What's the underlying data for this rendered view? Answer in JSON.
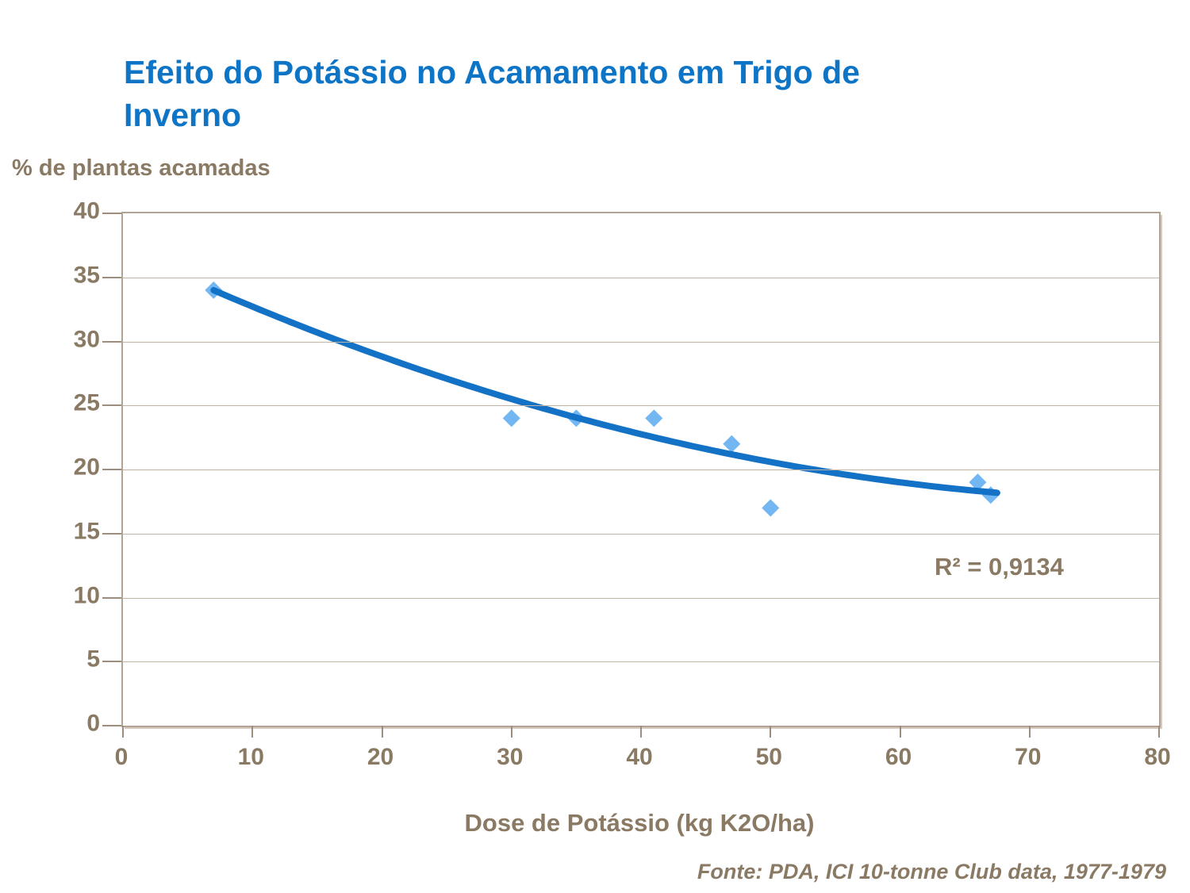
{
  "title": {
    "full": "Efeito do Potássio no Acamamento em Trigo de Inverno",
    "lines": [
      "Efeito do Potássio no Acamamento em Trigo de",
      "Inverno"
    ]
  },
  "y_axis_title": "% de plantas acamadas",
  "x_axis_title": "Dose de Potássio (kg K2O/ha)",
  "annotation_r2": "R² = 0,9134",
  "source": "Fonte: PDA, ICI 10-tonne Club data, 1977-1979",
  "colors": {
    "title": "#0d74c6",
    "text": "#8a7a64",
    "grid": "#c2b4a4",
    "border": "#b3a395",
    "tick": "#9d8d7d",
    "marker": "#72b6f2",
    "trendline": "#1371c6"
  },
  "chart_data": {
    "type": "scatter",
    "title": "Efeito do Potássio no Acamamento em Trigo de Inverno",
    "xlabel": "Dose de Potássio (kg K2O/ha)",
    "ylabel": "% de plantas acamadas",
    "x": [
      7,
      30,
      35,
      41,
      47,
      50,
      66,
      67
    ],
    "y": [
      34,
      24,
      24,
      24,
      22,
      17,
      19,
      18
    ],
    "xlim": [
      0,
      80
    ],
    "ylim": [
      0,
      40
    ],
    "xticks": [
      0,
      10,
      20,
      30,
      40,
      50,
      60,
      70,
      80
    ],
    "yticks": [
      0,
      5,
      10,
      15,
      20,
      25,
      30,
      35,
      40
    ],
    "grid": "horizontal-only",
    "legend": "none",
    "marker": "diamond",
    "trendline": {
      "type": "polynomial-2",
      "coefficients": [
        0.00288,
        -0.476,
        37.19
      ],
      "x_range": [
        7,
        67.5
      ],
      "r_squared": 0.9134,
      "label": "R² = 0,9134"
    }
  }
}
